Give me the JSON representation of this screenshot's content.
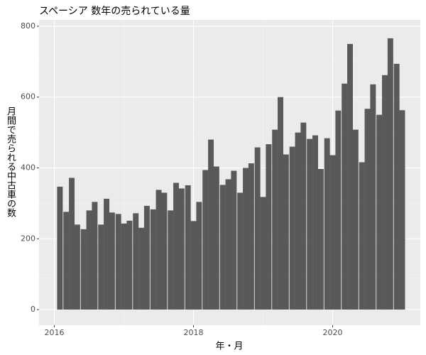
{
  "chart_data": {
    "type": "bar",
    "title": "スペーシア 数年の売られている量",
    "x_label": "年・月",
    "y_label": "月間で売られる中古車の数",
    "x": [
      2016.08,
      2016.17,
      2016.25,
      2016.33,
      2016.42,
      2016.5,
      2016.58,
      2016.67,
      2016.75,
      2016.83,
      2016.92,
      2017,
      2017.08,
      2017.17,
      2017.25,
      2017.33,
      2017.42,
      2017.5,
      2017.58,
      2017.67,
      2017.75,
      2017.83,
      2017.92,
      2018,
      2018.08,
      2018.17,
      2018.25,
      2018.33,
      2018.42,
      2018.5,
      2018.58,
      2018.67,
      2018.75,
      2018.83,
      2018.92,
      2019,
      2019.08,
      2019.17,
      2019.25,
      2019.33,
      2019.42,
      2019.5,
      2019.58,
      2019.67,
      2019.75,
      2019.83,
      2019.92,
      2020,
      2020.08,
      2020.17,
      2020.25,
      2020.33,
      2020.42,
      2020.5,
      2020.58,
      2020.67,
      2020.75,
      2020.83,
      2020.92,
      2021
    ],
    "values": [
      347,
      276,
      372,
      240,
      227,
      280,
      304,
      240,
      313,
      274,
      270,
      243,
      251,
      272,
      231,
      293,
      283,
      338,
      330,
      280,
      358,
      342,
      351,
      250,
      304,
      394,
      480,
      404,
      352,
      368,
      392,
      330,
      400,
      413,
      458,
      318,
      467,
      508,
      600,
      438,
      460,
      500,
      528,
      482,
      492,
      397,
      484,
      436,
      562,
      638,
      750,
      508,
      416,
      567,
      636,
      550,
      662,
      766,
      694,
      563
    ],
    "color": "#595959",
    "xlim": [
      2015.78,
      2021.26
    ],
    "xticks": [
      2016,
      2018,
      2020
    ],
    "ylim": [
      -44,
      818
    ],
    "yticks": [
      0,
      200,
      400,
      600,
      800
    ],
    "grid": true
  }
}
